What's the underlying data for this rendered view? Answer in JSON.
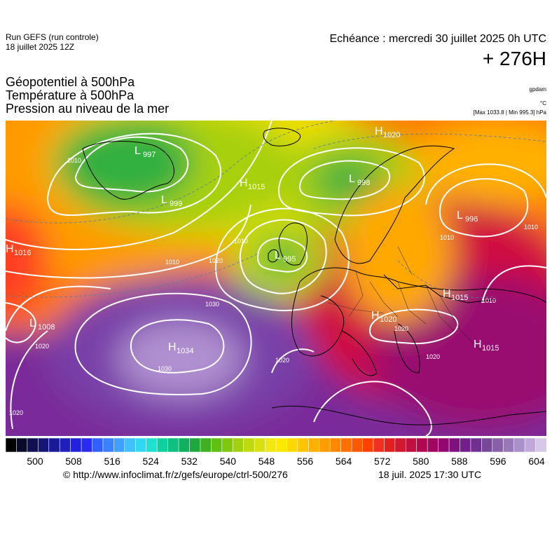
{
  "header": {
    "run_line1": "Run GEFS (run controle)",
    "run_line2": "18 juillet 2025 12Z",
    "echeance": "Echéance : mercredi 30 juillet 2025 0h UTC",
    "hours": "+ 276H"
  },
  "titles": {
    "line1": "Géopotentiel à 500hPa",
    "line2": "Température à 500hPa",
    "line3": "Pression au niveau de la mer"
  },
  "units": {
    "gpdam": "gpdam",
    "celsius": "°C",
    "pressure": "[Max 1033.8 | Min 995.3] hPa"
  },
  "pressure_centers": [
    {
      "type": "L",
      "value": "997"
    },
    {
      "type": "L",
      "value": "999"
    },
    {
      "type": "H",
      "value": "1015"
    },
    {
      "type": "L",
      "value": "998"
    },
    {
      "type": "H",
      "value": "1020"
    },
    {
      "type": "L",
      "value": "996"
    },
    {
      "type": "L",
      "value": "995"
    },
    {
      "type": "H",
      "value": "1016"
    },
    {
      "type": "L",
      "value": "1008"
    },
    {
      "type": "H",
      "value": "1034"
    },
    {
      "type": "H",
      "value": "1015"
    },
    {
      "type": "H",
      "value": "1020"
    },
    {
      "type": "H",
      "value": "1015"
    }
  ],
  "isobar_labels": [
    "1010",
    "1020",
    "1030",
    "1030",
    "1020",
    "1020",
    "1010",
    "1010",
    "1020",
    "1010",
    "1020",
    "1020",
    "1010",
    "1010"
  ],
  "colorbar": {
    "ticks": [
      "500",
      "508",
      "516",
      "524",
      "532",
      "540",
      "548",
      "556",
      "564",
      "572",
      "580",
      "588",
      "596",
      "604"
    ],
    "colors": [
      "#000000",
      "#0a0a2a",
      "#101050",
      "#151577",
      "#1a1a99",
      "#1f1fbb",
      "#2222dd",
      "#2a2af0",
      "#3060ff",
      "#3a80ff",
      "#40a0ff",
      "#40c0ff",
      "#30d8f0",
      "#20e0d0",
      "#10d0a0",
      "#10c080",
      "#10b060",
      "#20a840",
      "#40b020",
      "#60c010",
      "#80c810",
      "#a0d010",
      "#c0d810",
      "#d8e010",
      "#f0e810",
      "#ffe800",
      "#ffd800",
      "#ffc400",
      "#ffb000",
      "#ff9c00",
      "#ff8800",
      "#ff7000",
      "#ff5800",
      "#ff4000",
      "#f03020",
      "#e02020",
      "#d01830",
      "#c01040",
      "#b00850",
      "#a00860",
      "#900870",
      "#801080",
      "#702088",
      "#703090",
      "#784898",
      "#8860a8",
      "#9878b8",
      "#a890c8",
      "#c0a8d8",
      "#d8c8e8"
    ],
    "highlight": "#d8c8e8"
  },
  "footer": {
    "url": "© http://www.infoclimat.fr/z/gefs/europe/ctrl-500/276",
    "timestamp": "18 juil. 2025 17:30 UTC"
  }
}
